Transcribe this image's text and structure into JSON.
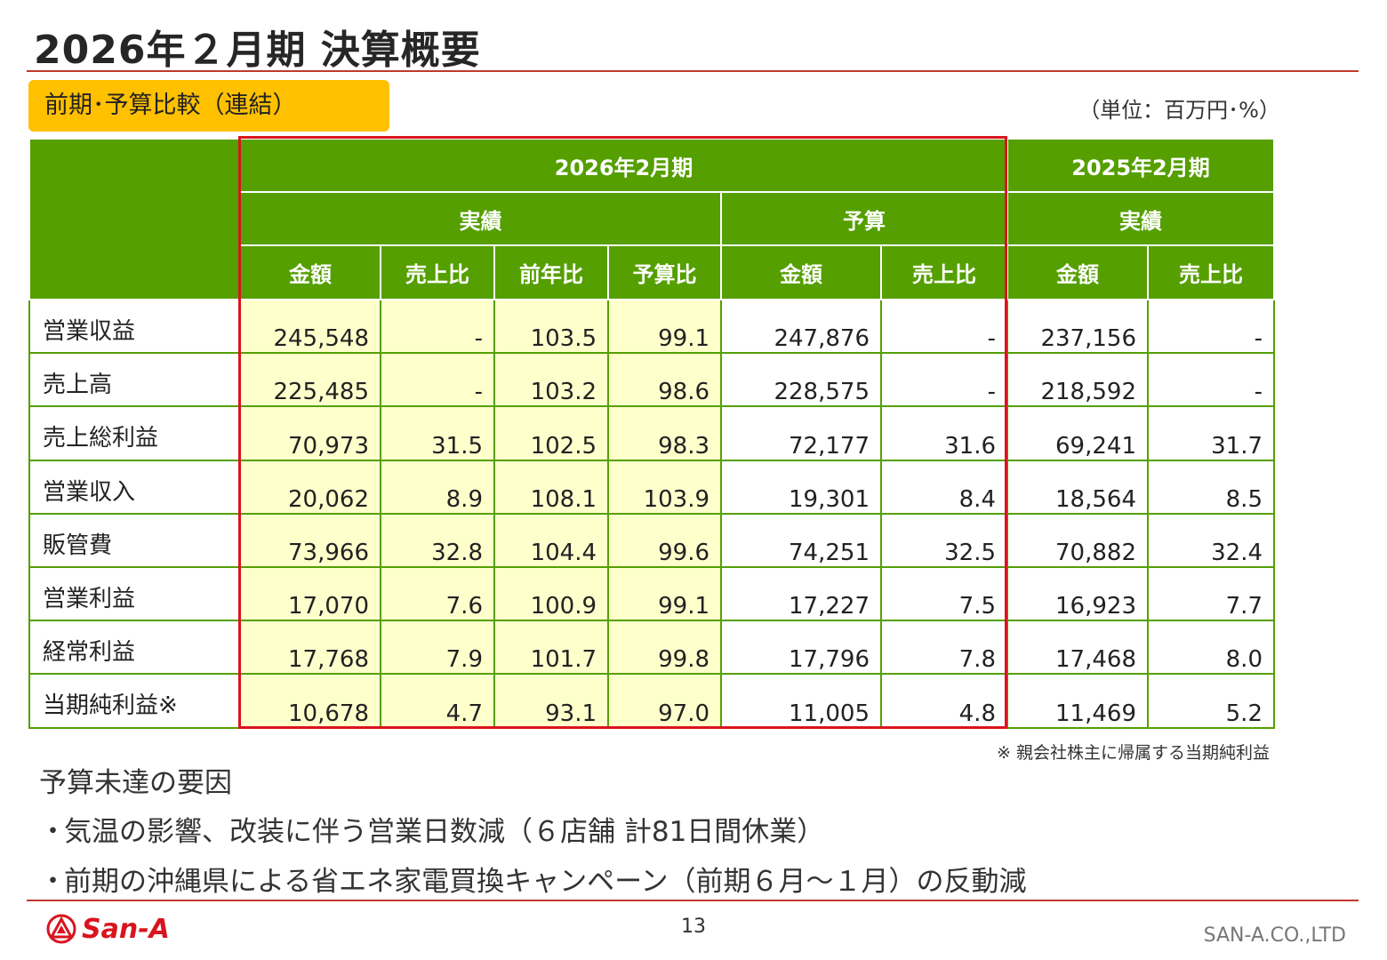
{
  "slide": {
    "title": "2026年２月期 決算概要",
    "badge": "前期･予算比較（連結）",
    "unit": "（単位：百万円･%）",
    "footnote": "※ 親会社株主に帰属する当期純利益",
    "page_number": "13",
    "company": "SAN-A.CO.,LTD",
    "logo_text": "San-A"
  },
  "table": {
    "header": {
      "fy2026": "2026年2月期",
      "fy2025": "2025年2月期",
      "actual": "実績",
      "budget": "予算",
      "actual_prev": "実績",
      "cols": [
        "金額",
        "売上比",
        "前年比",
        "予算比",
        "金額",
        "売上比",
        "金額",
        "売上比"
      ]
    },
    "rows": [
      {
        "label": "営業収益",
        "values": [
          "245,548",
          "-",
          "103.5",
          "99.1",
          "247,876",
          "-",
          "237,156",
          "-"
        ]
      },
      {
        "label": "売上高",
        "values": [
          "225,485",
          "-",
          "103.2",
          "98.6",
          "228,575",
          "-",
          "218,592",
          "-"
        ]
      },
      {
        "label": "売上総利益",
        "values": [
          "70,973",
          "31.5",
          "102.5",
          "98.3",
          "72,177",
          "31.6",
          "69,241",
          "31.7"
        ]
      },
      {
        "label": "営業収入",
        "values": [
          "20,062",
          "8.9",
          "108.1",
          "103.9",
          "19,301",
          "8.4",
          "18,564",
          "8.5"
        ]
      },
      {
        "label": "販管費",
        "values": [
          "73,966",
          "32.8",
          "104.4",
          "99.6",
          "74,251",
          "32.5",
          "70,882",
          "32.4"
        ]
      },
      {
        "label": "営業利益",
        "values": [
          "17,070",
          "7.6",
          "100.9",
          "99.1",
          "17,227",
          "7.5",
          "16,923",
          "7.7"
        ]
      },
      {
        "label": "経常利益",
        "values": [
          "17,768",
          "7.9",
          "101.7",
          "99.8",
          "17,796",
          "7.8",
          "17,468",
          "8.0"
        ]
      },
      {
        "label": "当期純利益※",
        "values": [
          "10,678",
          "4.7",
          "93.1",
          "97.0",
          "11,005",
          "4.8",
          "11,469",
          "5.2"
        ]
      }
    ]
  },
  "reasons": {
    "title": "予算未達の要因",
    "bullet": "・",
    "items": [
      "気温の影響、改装に伴う営業日数減（６店舗 計81日間休業）",
      "前期の沖縄県による省エネ家電買換キャンペーン（前期６月～１月）の反動減"
    ]
  },
  "colors": {
    "header_green": "#559f00",
    "highlight_yellow": "#ffffcc",
    "badge_yellow": "#ffc000",
    "accent_red": "#d9141e"
  }
}
